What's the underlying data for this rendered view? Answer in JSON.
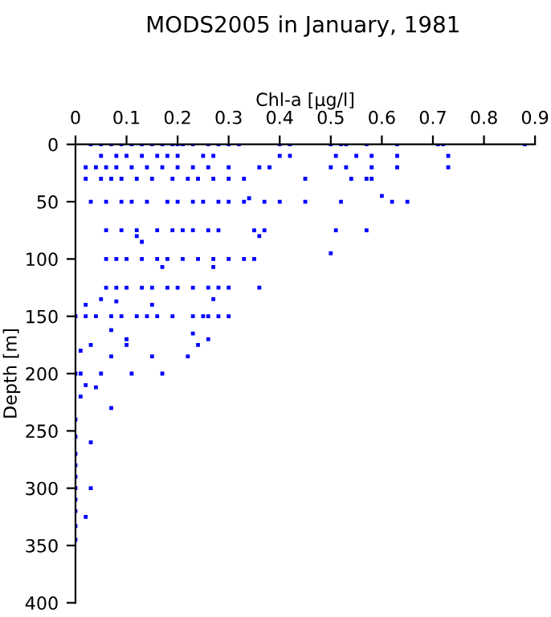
{
  "chart_data": {
    "type": "scatter",
    "title": "MODS2005 in January, 1981",
    "xlabel": "Chl-a [µg/l]",
    "ylabel": "Depth [m]",
    "xlim": [
      0,
      0.9
    ],
    "xticks": [
      0,
      0.1,
      0.2,
      0.3,
      0.4,
      0.5,
      0.6,
      0.7,
      0.8,
      0.9
    ],
    "ylim": [
      400,
      0
    ],
    "yticks": [
      0,
      50,
      100,
      150,
      200,
      250,
      300,
      350,
      400
    ],
    "marker": "square",
    "grid": false,
    "series": [
      {
        "color": "#0000ff",
        "x": [
          0.03,
          0.05,
          0.07,
          0.09,
          0.11,
          0.13,
          0.15,
          0.17,
          0.19,
          0.2,
          0.21,
          0.23,
          0.26,
          0.28,
          0.3,
          0.32,
          0.4,
          0.42,
          0.5,
          0.52,
          0.53,
          0.57,
          0.63,
          0.71,
          0.72,
          0.88,
          0.05,
          0.08,
          0.1,
          0.13,
          0.16,
          0.18,
          0.2,
          0.25,
          0.27,
          0.4,
          0.42,
          0.51,
          0.55,
          0.58,
          0.63,
          0.73,
          0.02,
          0.04,
          0.06,
          0.08,
          0.11,
          0.14,
          0.17,
          0.2,
          0.23,
          0.26,
          0.3,
          0.36,
          0.38,
          0.5,
          0.53,
          0.58,
          0.63,
          0.73,
          0.02,
          0.05,
          0.07,
          0.09,
          0.12,
          0.15,
          0.19,
          0.22,
          0.24,
          0.27,
          0.3,
          0.33,
          0.45,
          0.54,
          0.57,
          0.58,
          0.03,
          0.06,
          0.09,
          0.11,
          0.14,
          0.18,
          0.2,
          0.23,
          0.25,
          0.28,
          0.3,
          0.33,
          0.37,
          0.4,
          0.45,
          0.52,
          0.62,
          0.65,
          0.34,
          0.6,
          0.06,
          0.09,
          0.12,
          0.16,
          0.19,
          0.21,
          0.23,
          0.26,
          0.28,
          0.35,
          0.37,
          0.51,
          0.57,
          0.12,
          0.13,
          0.36,
          0.5,
          0.06,
          0.08,
          0.1,
          0.13,
          0.16,
          0.18,
          0.21,
          0.24,
          0.27,
          0.3,
          0.33,
          0.35,
          0.17,
          0.27,
          0.06,
          0.08,
          0.1,
          0.13,
          0.15,
          0.18,
          0.2,
          0.23,
          0.26,
          0.28,
          0.3,
          0.36,
          0.05,
          0.27,
          0.0,
          0.02,
          0.04,
          0.07,
          0.09,
          0.12,
          0.14,
          0.16,
          0.19,
          0.23,
          0.25,
          0.26,
          0.28,
          0.3,
          0.02,
          0.08,
          0.15,
          0.07,
          0.23,
          0.1,
          0.26,
          0.03,
          0.01,
          0.1,
          0.24,
          0.07,
          0.15,
          0.22,
          0.0,
          0.01,
          0.05,
          0.11,
          0.17,
          0.02,
          0.01,
          0.07,
          0.04,
          0.0,
          0.03,
          0.0,
          0.0,
          0.0,
          0.0,
          0.0,
          0.0,
          0.03,
          0.0,
          0.02,
          0.0,
          0.0
        ],
        "values": [
          0,
          0,
          0,
          0,
          0,
          0,
          0,
          0,
          0,
          0,
          0,
          0,
          0,
          0,
          0,
          0,
          0,
          0,
          0,
          0,
          0,
          0,
          0,
          0,
          0,
          0,
          10,
          10,
          10,
          10,
          10,
          10,
          10,
          10,
          10,
          10,
          10,
          10,
          10,
          10,
          10,
          10,
          20,
          20,
          20,
          20,
          20,
          20,
          20,
          20,
          20,
          20,
          20,
          20,
          20,
          20,
          20,
          20,
          20,
          20,
          30,
          30,
          30,
          30,
          30,
          30,
          30,
          30,
          30,
          30,
          30,
          30,
          30,
          30,
          30,
          30,
          50,
          50,
          50,
          50,
          50,
          50,
          50,
          50,
          50,
          50,
          50,
          50,
          50,
          50,
          50,
          50,
          50,
          50,
          47,
          45,
          75,
          75,
          75,
          75,
          75,
          75,
          75,
          75,
          75,
          75,
          75,
          75,
          75,
          80,
          85,
          80,
          95,
          100,
          100,
          100,
          100,
          100,
          100,
          100,
          100,
          100,
          100,
          100,
          100,
          107,
          107,
          125,
          125,
          125,
          125,
          125,
          125,
          125,
          125,
          125,
          125,
          125,
          125,
          135,
          135,
          150,
          150,
          150,
          150,
          150,
          150,
          150,
          150,
          150,
          150,
          150,
          150,
          150,
          150,
          140,
          137,
          140,
          162,
          165,
          170,
          170,
          175,
          180,
          175,
          175,
          185,
          185,
          185,
          200,
          200,
          200,
          200,
          200,
          210,
          220,
          230,
          212,
          240,
          260,
          255,
          270,
          280,
          290,
          300,
          310,
          300,
          320,
          325,
          333,
          345
        ]
      }
    ]
  }
}
